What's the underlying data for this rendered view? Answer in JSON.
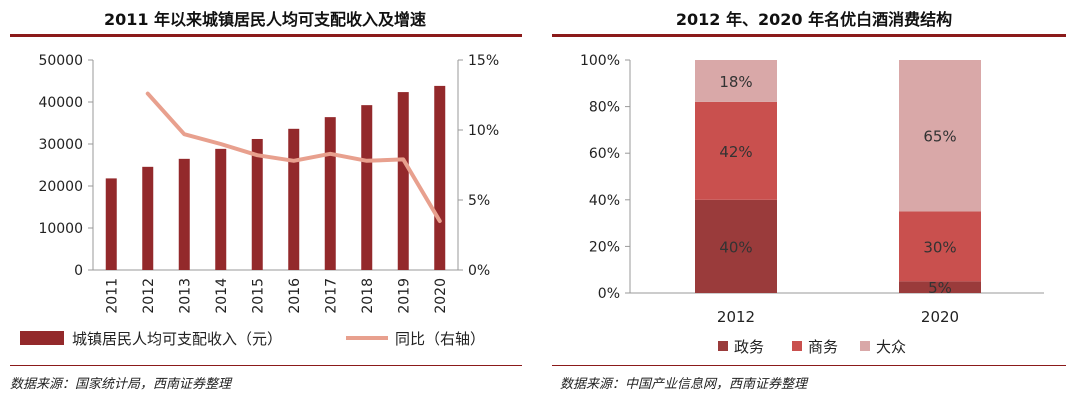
{
  "colors": {
    "accent": "#8b1a1a",
    "bar_income": "#93292b",
    "line_yoy": "#e8a08e",
    "gov": "#9a3b3b",
    "business": "#c9504e",
    "mass": "#d9a8a8"
  },
  "left_panel": {
    "title": "2011 年以来城镇居民人均可支配收入及增速",
    "source": "数据来源：国家统计局，西南证券整理"
  },
  "right_panel": {
    "title": "2012 年、2020 年名优白酒消费结构",
    "source": "数据来源：中国产业信息网，西南证券整理"
  },
  "chart_data": [
    {
      "type": "bar",
      "title": "2011 年以来城镇居民人均可支配收入及增速",
      "categories": [
        "2011",
        "2012",
        "2013",
        "2014",
        "2015",
        "2016",
        "2017",
        "2018",
        "2019",
        "2020"
      ],
      "series": [
        {
          "name": "城镇居民人均可支配收入（元）",
          "kind": "bar",
          "axis": "left",
          "values": [
            21810,
            24565,
            26467,
            28844,
            31195,
            33616,
            36396,
            39251,
            42359,
            43834
          ]
        },
        {
          "name": "同比（右轴）",
          "kind": "line",
          "axis": "right",
          "values": [
            null,
            12.6,
            9.7,
            9.0,
            8.2,
            7.8,
            8.3,
            7.8,
            7.9,
            3.5
          ]
        }
      ],
      "y_left": {
        "min": 0,
        "max": 50000,
        "ticks": [
          "0",
          "10000",
          "20000",
          "30000",
          "40000",
          "50000"
        ]
      },
      "y_right": {
        "min": 0,
        "max": 15,
        "ticks": [
          "0%",
          "5%",
          "10%",
          "15%"
        ]
      },
      "legend_position": "bottom"
    },
    {
      "type": "bar",
      "stacked": true,
      "title": "2012 年、2020 年名优白酒消费结构",
      "categories": [
        "2012",
        "2020"
      ],
      "series": [
        {
          "name": "政务",
          "values": [
            40,
            5
          ],
          "labels": [
            "40%",
            "5%"
          ]
        },
        {
          "name": "商务",
          "values": [
            42,
            30
          ],
          "labels": [
            "42%",
            "30%"
          ]
        },
        {
          "name": "大众",
          "values": [
            18,
            65
          ],
          "labels": [
            "18%",
            "65%"
          ]
        }
      ],
      "y": {
        "min": 0,
        "max": 100,
        "ticks": [
          "0%",
          "20%",
          "40%",
          "60%",
          "80%",
          "100%"
        ]
      },
      "legend_position": "bottom"
    }
  ]
}
